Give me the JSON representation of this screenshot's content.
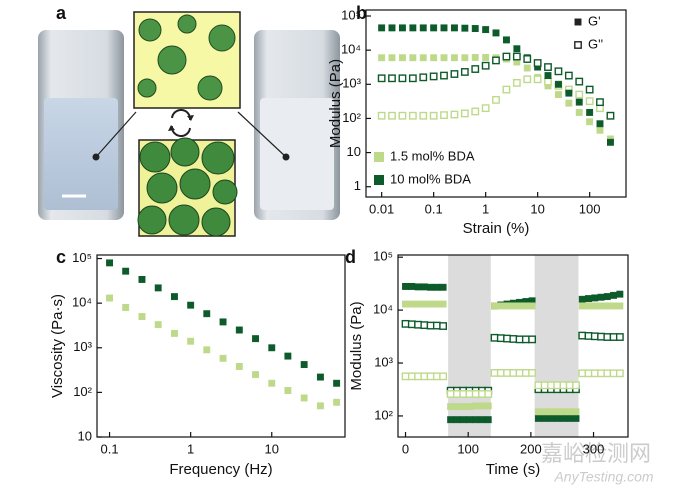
{
  "panel_a": {
    "label": "a"
  },
  "watermark": [
    "嘉峪检测网",
    "AnyTesting.com"
  ],
  "chart_data": [
    {
      "type": "scatter",
      "panel": "b",
      "x_label": "Strain (%)",
      "y_label": "Modulus (Pa)",
      "xscale": "log",
      "yscale": "log",
      "xlim": [
        0.005,
        500
      ],
      "ylim": [
        0.5,
        150000
      ],
      "xticks": [
        0.01,
        0.1,
        1,
        10,
        100
      ],
      "yticks": [
        1,
        10,
        {
          "value": 100,
          "label": "10²"
        },
        {
          "value": 1000,
          "label": "10³"
        },
        {
          "value": 10000,
          "label": "10⁴"
        },
        {
          "value": 100000,
          "label": "10⁵"
        }
      ],
      "legend": {
        "moduli": [
          {
            "label": "G'",
            "filled": true,
            "color": "#222222"
          },
          {
            "label": "G''",
            "filled": false,
            "color": "#222222"
          }
        ],
        "materials": [
          {
            "label": "1.5 mol% BDA",
            "color": "#bfd98a"
          },
          {
            "label": "10 mol% BDA",
            "color": "#0d5a2b"
          }
        ]
      },
      "x": [
        0.01,
        0.0158,
        0.0251,
        0.0398,
        0.0631,
        0.1,
        0.158,
        0.251,
        0.398,
        0.631,
        1,
        1.58,
        2.51,
        3.98,
        6.31,
        10,
        15.8,
        25.1,
        39.8,
        63.1,
        100,
        158,
        251
      ],
      "series": [
        {
          "color": "#bfd98a",
          "filled": true,
          "values": [
            6000,
            6000,
            6000,
            6000,
            6000,
            6000,
            6000,
            6000,
            6000,
            6100,
            6100,
            6000,
            5500,
            4500,
            3000,
            1600,
            900,
            500,
            280,
            150,
            80,
            45,
            25
          ]
        },
        {
          "color": "#bfd98a",
          "filled": false,
          "values": [
            120,
            120,
            120,
            120,
            120,
            120,
            125,
            130,
            140,
            160,
            200,
            350,
            700,
            1100,
            1400,
            1400,
            1200,
            900,
            700,
            500,
            320,
            200,
            120
          ]
        },
        {
          "color": "#0d5a2b",
          "filled": true,
          "values": [
            45000,
            45000,
            45000,
            45000,
            45000,
            45000,
            45000,
            45000,
            44000,
            43000,
            40000,
            32000,
            20000,
            11000,
            6000,
            3200,
            1800,
            1000,
            550,
            300,
            150,
            70,
            20
          ]
        },
        {
          "color": "#0d5a2b",
          "filled": false,
          "values": [
            1500,
            1500,
            1500,
            1500,
            1600,
            1700,
            1800,
            2000,
            2300,
            2800,
            3500,
            5000,
            6500,
            6500,
            5500,
            4200,
            3200,
            2400,
            1800,
            1200,
            700,
            300,
            120
          ]
        }
      ]
    },
    {
      "type": "scatter",
      "panel": "c",
      "x_label": "Frequency (Hz)",
      "y_label": "Viscosity (Pa·s)",
      "xscale": "log",
      "yscale": "log",
      "xlim": [
        0.07,
        80
      ],
      "ylim": [
        10,
        120000
      ],
      "xticks": [
        0.1,
        1,
        10
      ],
      "yticks": [
        10,
        {
          "value": 100,
          "label": "10²"
        },
        {
          "value": 1000,
          "label": "10³"
        },
        {
          "value": 10000,
          "label": "10⁴"
        },
        {
          "value": 100000,
          "label": "10⁵"
        }
      ],
      "x": [
        0.1,
        0.158,
        0.251,
        0.398,
        0.631,
        1,
        1.58,
        2.51,
        3.98,
        6.31,
        10,
        15.8,
        25.1,
        39.8,
        63.1
      ],
      "series": [
        {
          "color": "#0d5a2b",
          "filled": true,
          "values": [
            80000,
            52000,
            34000,
            22000,
            14000,
            9000,
            5800,
            3800,
            2500,
            1600,
            1000,
            650,
            420,
            220,
            160
          ]
        },
        {
          "color": "#bfd98a",
          "filled": true,
          "values": [
            13000,
            8000,
            5000,
            3300,
            2100,
            1400,
            900,
            580,
            380,
            250,
            160,
            110,
            75,
            50,
            60
          ]
        }
      ]
    },
    {
      "type": "scatter",
      "panel": "d",
      "x_label": "Time (s)",
      "y_label": "Modulus (Pa)",
      "xscale": "linear",
      "yscale": "log",
      "xlim": [
        -12,
        355
      ],
      "ylim": [
        40,
        110000
      ],
      "xticks": [
        0,
        100,
        200,
        300
      ],
      "yticks": [
        {
          "value": 100,
          "label": "10²"
        },
        {
          "value": 1000,
          "label": "10³"
        },
        {
          "value": 10000,
          "label": "10⁴"
        },
        {
          "value": 100000,
          "label": "10⁵"
        }
      ],
      "shaded_regions": [
        [
          68,
          136
        ],
        [
          206,
          276
        ]
      ],
      "x": [
        0,
        10,
        20,
        30,
        40,
        50,
        60,
        72,
        82,
        92,
        102,
        112,
        122,
        132,
        142,
        152,
        162,
        172,
        182,
        192,
        202,
        212,
        222,
        232,
        242,
        252,
        262,
        272,
        282,
        292,
        302,
        312,
        322,
        332,
        342
      ],
      "series": [
        {
          "color": "#0d5a2b",
          "filled": true,
          "values": [
            28000,
            28000,
            27500,
            27500,
            27000,
            27000,
            27000,
            85,
            85,
            85,
            85,
            85,
            85,
            85,
            12000,
            12500,
            13000,
            13500,
            14000,
            14500,
            15000,
            90,
            90,
            90,
            90,
            90,
            90,
            90,
            16000,
            16500,
            17000,
            17500,
            18000,
            19000,
            20000
          ]
        },
        {
          "color": "#bfd98a",
          "filled": true,
          "values": [
            13000,
            13000,
            13000,
            13000,
            13000,
            13000,
            13000,
            150,
            150,
            150,
            150,
            155,
            155,
            155,
            12000,
            12000,
            12000,
            12000,
            12000,
            12000,
            12000,
            120,
            120,
            120,
            120,
            120,
            120,
            120,
            12000,
            12000,
            12000,
            12000,
            12000,
            12000,
            12000
          ]
        },
        {
          "color": "#0d5a2b",
          "filled": false,
          "values": [
            5500,
            5400,
            5300,
            5200,
            5100,
            5100,
            5000,
            300,
            300,
            300,
            300,
            300,
            300,
            300,
            3000,
            2950,
            2900,
            2850,
            2800,
            2800,
            2800,
            320,
            320,
            320,
            320,
            320,
            320,
            320,
            3300,
            3250,
            3200,
            3150,
            3100,
            3100,
            3100
          ]
        },
        {
          "color": "#bfd98a",
          "filled": false,
          "values": [
            560,
            560,
            560,
            560,
            560,
            560,
            560,
            260,
            260,
            260,
            260,
            260,
            260,
            260,
            650,
            650,
            650,
            650,
            650,
            650,
            650,
            380,
            380,
            380,
            380,
            380,
            380,
            380,
            640,
            640,
            640,
            640,
            640,
            640,
            640
          ]
        }
      ]
    }
  ]
}
